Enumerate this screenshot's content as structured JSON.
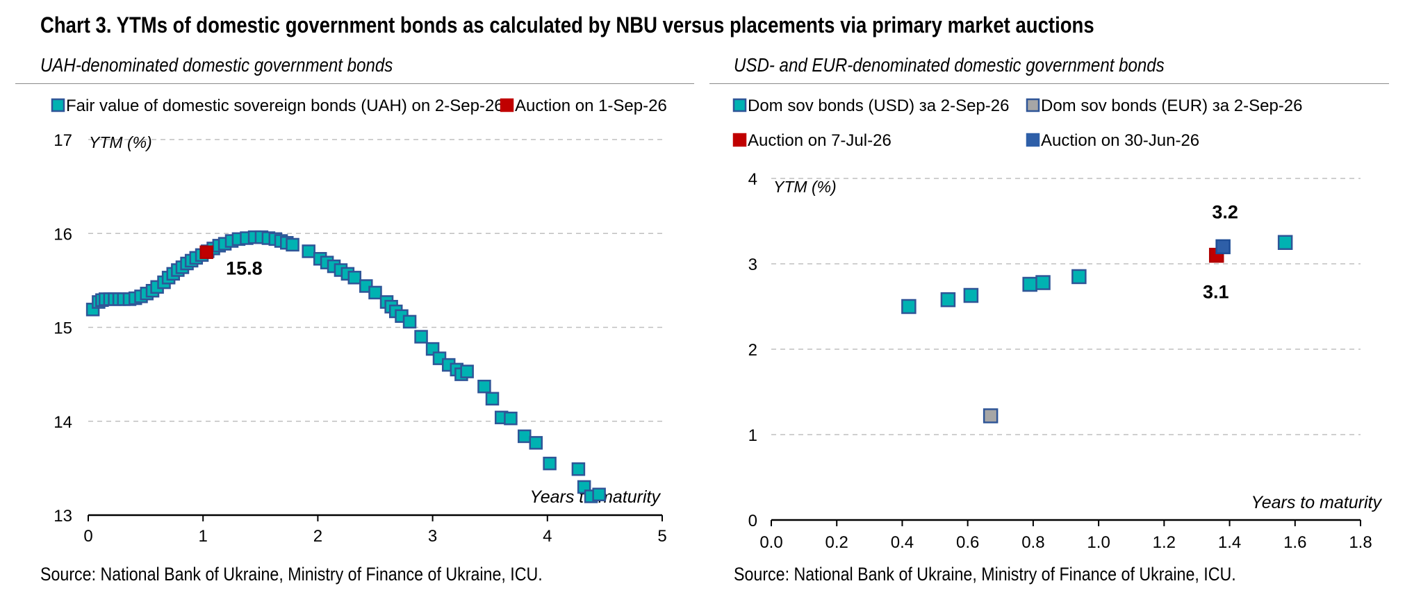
{
  "title": "Chart 3. YTMs of domestic government bonds as calculated by NBU versus placements via primary market auctions",
  "source_text": "Source: National Bank of Ukraine, Ministry of Finance of Ukraine, ICU.",
  "colors": {
    "fair_value_fill": "#00b2b2",
    "marker_edge": "#2f5597",
    "auction_red": "#c00000",
    "auction_blue": "#2e5fa8",
    "eur_grey": "#a6a6a6",
    "grid": "#bfbfbf"
  },
  "chart_data": [
    {
      "type": "scatter",
      "subtitle": "UAH-denominated domestic government bonds",
      "xlabel": "Years to maturity",
      "ylabel": "YTM (%)",
      "xlim": [
        0,
        5
      ],
      "ylim": [
        13,
        17
      ],
      "xticks": [
        "0",
        "1",
        "2",
        "3",
        "4",
        "5"
      ],
      "yticks": [
        "13",
        "14",
        "15",
        "16",
        "17"
      ],
      "legend_position": "top",
      "series": [
        {
          "name": "Fair value of domestic sovereign bonds (UAH) on 2-Sep-26",
          "color_key": "fair_value_fill",
          "points": [
            [
              0.04,
              15.19
            ],
            [
              0.09,
              15.27
            ],
            [
              0.12,
              15.29
            ],
            [
              0.15,
              15.3
            ],
            [
              0.19,
              15.3
            ],
            [
              0.23,
              15.3
            ],
            [
              0.27,
              15.3
            ],
            [
              0.31,
              15.3
            ],
            [
              0.36,
              15.3
            ],
            [
              0.41,
              15.31
            ],
            [
              0.46,
              15.33
            ],
            [
              0.51,
              15.36
            ],
            [
              0.56,
              15.39
            ],
            [
              0.6,
              15.43
            ],
            [
              0.66,
              15.48
            ],
            [
              0.7,
              15.53
            ],
            [
              0.74,
              15.57
            ],
            [
              0.78,
              15.61
            ],
            [
              0.82,
              15.64
            ],
            [
              0.86,
              15.68
            ],
            [
              0.9,
              15.71
            ],
            [
              0.94,
              15.74
            ],
            [
              0.99,
              15.77
            ],
            [
              1.04,
              15.81
            ],
            [
              1.09,
              15.84
            ],
            [
              1.14,
              15.87
            ],
            [
              1.19,
              15.89
            ],
            [
              1.25,
              15.92
            ],
            [
              1.31,
              15.94
            ],
            [
              1.38,
              15.95
            ],
            [
              1.45,
              15.96
            ],
            [
              1.51,
              15.96
            ],
            [
              1.57,
              15.95
            ],
            [
              1.63,
              15.94
            ],
            [
              1.68,
              15.92
            ],
            [
              1.73,
              15.9
            ],
            [
              1.78,
              15.88
            ],
            [
              1.92,
              15.81
            ],
            [
              2.02,
              15.73
            ],
            [
              2.08,
              15.69
            ],
            [
              2.14,
              15.65
            ],
            [
              2.2,
              15.61
            ],
            [
              2.26,
              15.57
            ],
            [
              2.32,
              15.53
            ],
            [
              2.42,
              15.44
            ],
            [
              2.5,
              15.37
            ],
            [
              2.6,
              15.27
            ],
            [
              2.64,
              15.22
            ],
            [
              2.68,
              15.17
            ],
            [
              2.73,
              15.12
            ],
            [
              2.8,
              15.06
            ],
            [
              2.9,
              14.9
            ],
            [
              3.0,
              14.77
            ],
            [
              3.06,
              14.67
            ],
            [
              3.14,
              14.6
            ],
            [
              3.21,
              14.55
            ],
            [
              3.25,
              14.5
            ],
            [
              3.3,
              14.53
            ],
            [
              3.45,
              14.37
            ],
            [
              3.52,
              14.24
            ],
            [
              3.6,
              14.04
            ],
            [
              3.68,
              14.03
            ],
            [
              3.8,
              13.84
            ],
            [
              3.9,
              13.77
            ],
            [
              4.02,
              13.55
            ],
            [
              4.27,
              13.49
            ],
            [
              4.32,
              13.3
            ],
            [
              4.38,
              13.2
            ],
            [
              4.45,
              13.22
            ]
          ]
        },
        {
          "name": "Auction on 1-Sep-26",
          "color_key": "auction_red",
          "points": [
            [
              1.03,
              15.8
            ]
          ],
          "label": "15.8"
        }
      ]
    },
    {
      "type": "scatter",
      "subtitle": "USD- and EUR-denominated domestic government bonds",
      "xlabel": "Years to maturity",
      "ylabel": "YTM (%)",
      "xlim": [
        0.0,
        1.8
      ],
      "ylim": [
        0,
        4
      ],
      "xticks": [
        "0.0",
        "0.2",
        "0.4",
        "0.6",
        "0.8",
        "1.0",
        "1.2",
        "1.4",
        "1.6",
        "1.8"
      ],
      "yticks": [
        "0",
        "1",
        "2",
        "3",
        "4"
      ],
      "legend_position": "top",
      "series": [
        {
          "name": "Dom sov bonds (USD) за 2-Sep-26",
          "color_key": "fair_value_fill",
          "points": [
            [
              0.42,
              2.5
            ],
            [
              0.54,
              2.58
            ],
            [
              0.61,
              2.63
            ],
            [
              0.79,
              2.76
            ],
            [
              0.83,
              2.78
            ],
            [
              0.94,
              2.85
            ],
            [
              1.57,
              3.25
            ]
          ]
        },
        {
          "name": "Dom sov bonds (EUR) за 2-Sep-26",
          "color_key": "eur_grey",
          "points": [
            [
              0.67,
              1.22
            ]
          ]
        },
        {
          "name": "Auction on 7-Jul-26",
          "color_key": "auction_red",
          "points": [
            [
              1.36,
              3.1
            ]
          ],
          "label": "3.1"
        },
        {
          "name": "Auction on 30-Jun-26",
          "color_key": "auction_blue",
          "points": [
            [
              1.38,
              3.2
            ]
          ],
          "label": "3.2"
        }
      ]
    }
  ]
}
